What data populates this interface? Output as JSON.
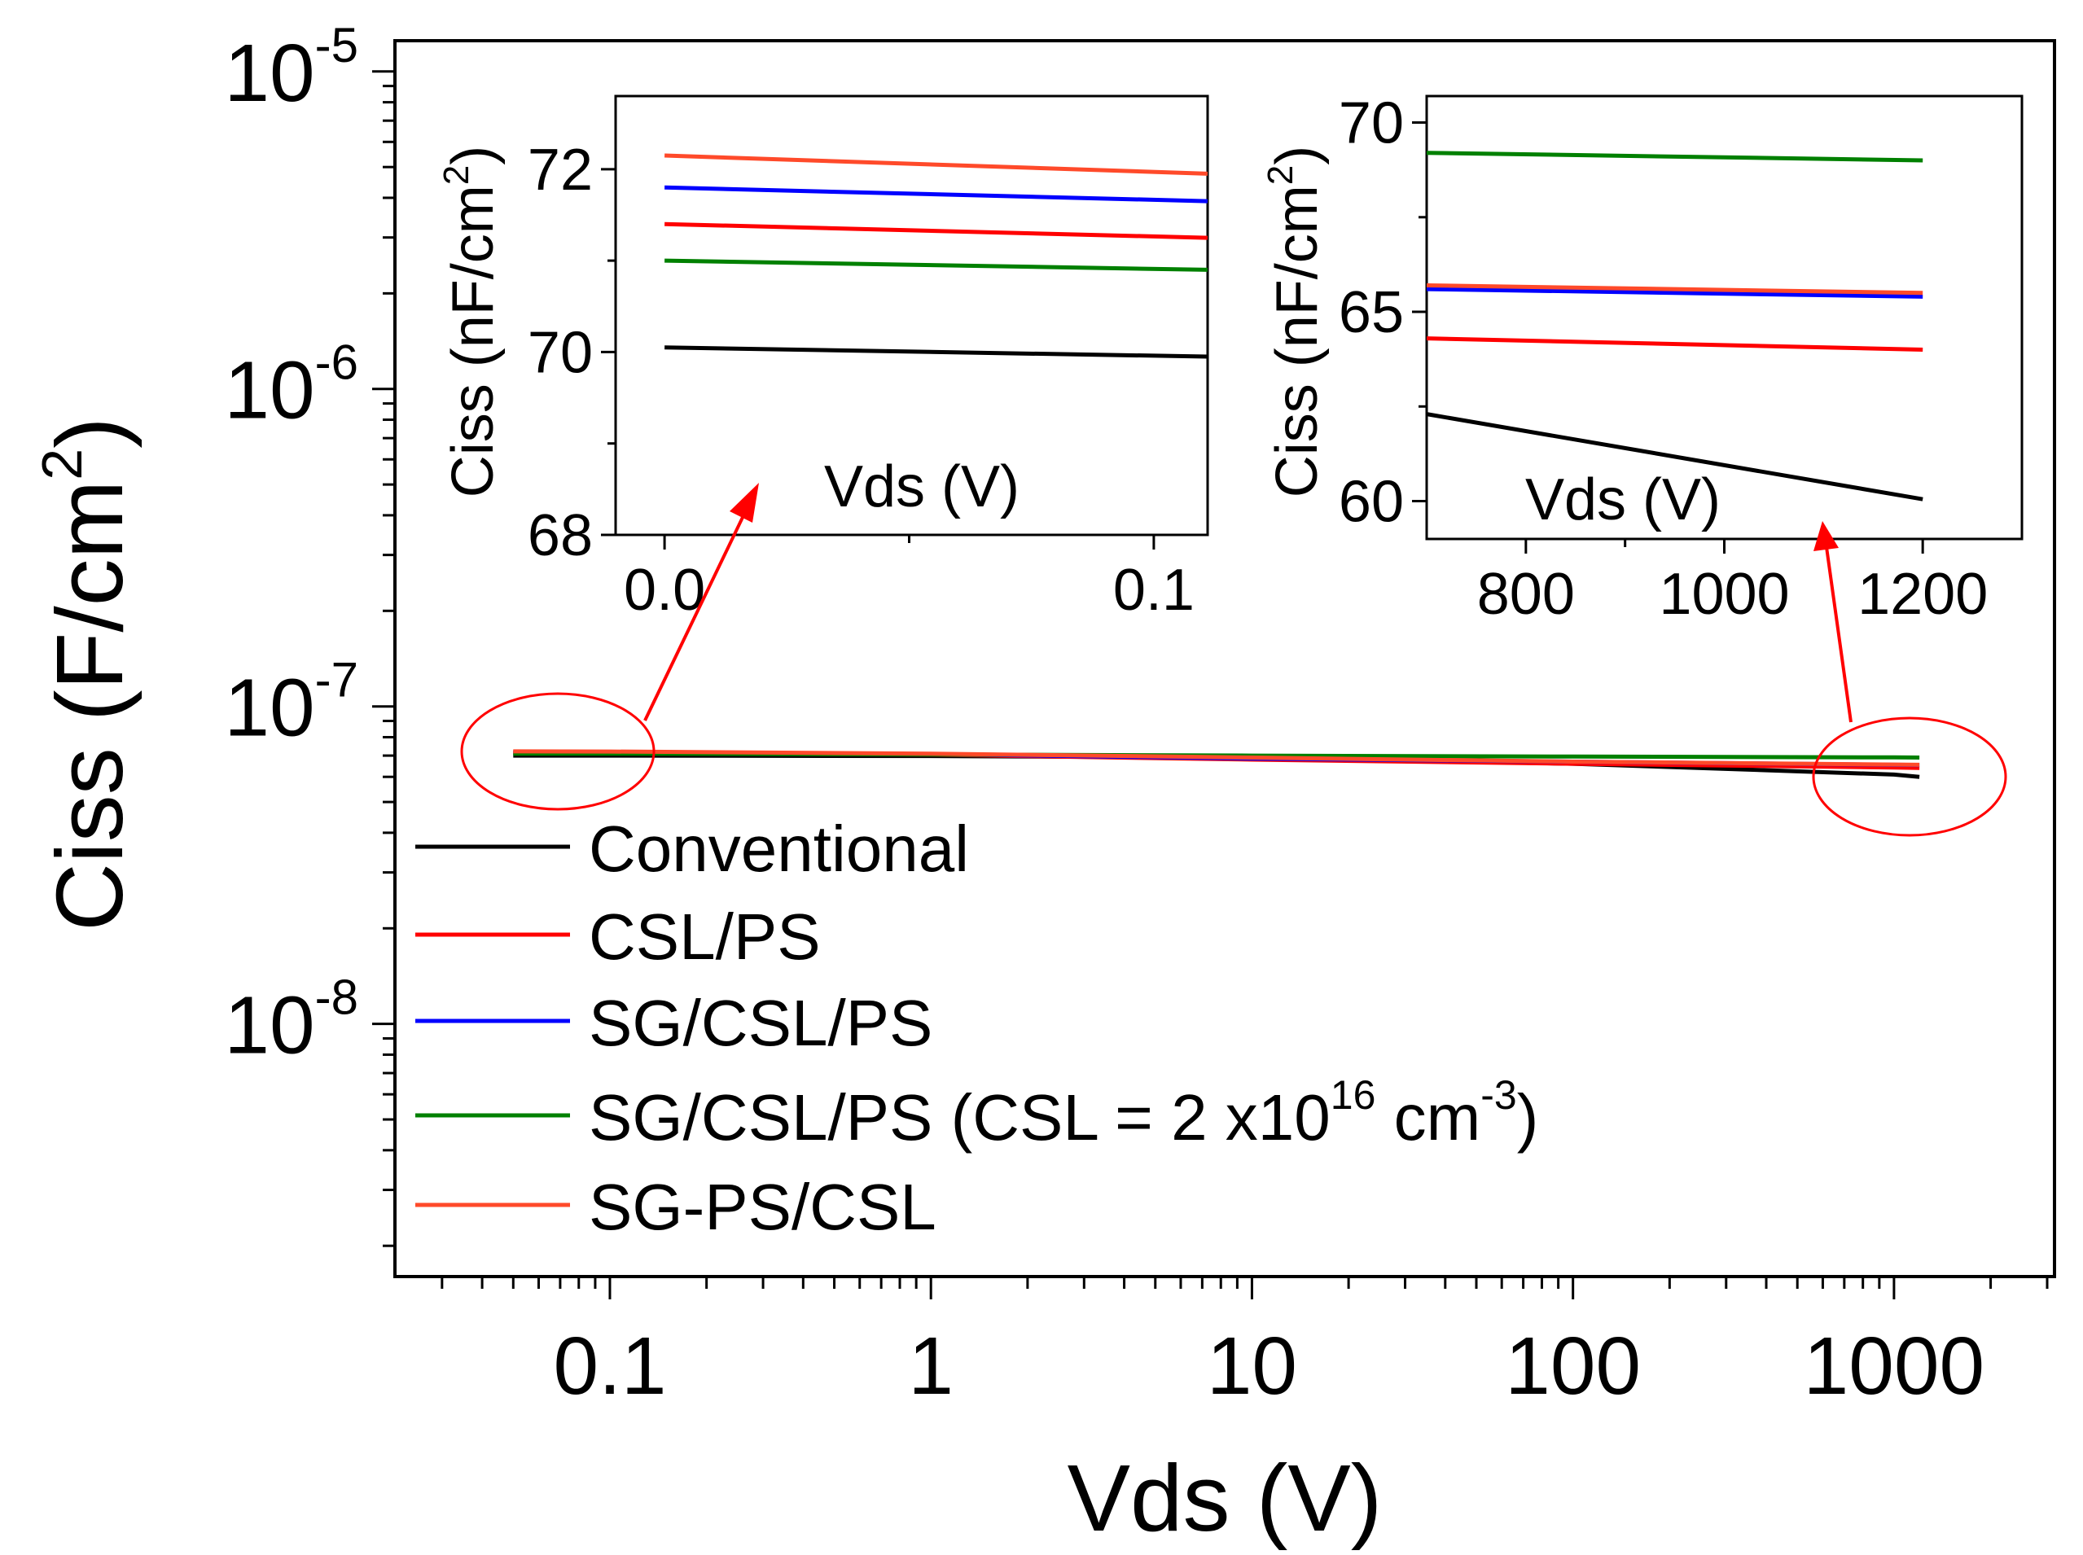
{
  "chart_data": [
    {
      "id": "main",
      "type": "line",
      "xscale": "log",
      "yscale": "log",
      "xlim": [
        0.0214,
        3162
      ],
      "ylim": [
        1.6e-09,
        1.25e-05
      ],
      "xlabel": "Vds (V)",
      "ylabel": "Ciss (F/cm²)",
      "ylabel_parts": {
        "main": "Ciss (F/cm",
        "sup": "2",
        "close": ")"
      },
      "x_ticks": [
        {
          "v": 0.1,
          "label": "0.1"
        },
        {
          "v": 1,
          "label": "1"
        },
        {
          "v": 10,
          "label": "10"
        },
        {
          "v": 100,
          "label": "100"
        },
        {
          "v": 1000,
          "label": "1000"
        }
      ],
      "y_ticks": [
        {
          "v": 1e-05,
          "base": "10",
          "exp": "-5"
        },
        {
          "v": 1e-06,
          "base": "10",
          "exp": "-6"
        },
        {
          "v": 1e-07,
          "base": "10",
          "exp": "-7"
        },
        {
          "v": 1e-08,
          "base": "10",
          "exp": "-8"
        }
      ],
      "series": [
        {
          "name": "Conventional",
          "color": "#000000",
          "x": [
            0.05,
            0.1,
            1,
            10,
            100,
            1000,
            1200
          ],
          "y": [
            7e-08,
            7e-08,
            6.98e-08,
            6.9e-08,
            6.6e-08,
            6.1e-08,
            6e-08
          ]
        },
        {
          "name": "CSL/PS",
          "color": "#ff0000",
          "x": [
            0.05,
            0.1,
            1,
            10,
            100,
            1000,
            1200
          ],
          "y": [
            7.14e-08,
            7.13e-08,
            7.05e-08,
            6.8e-08,
            6.6e-08,
            6.42e-08,
            6.4e-08
          ]
        },
        {
          "name": "SG/CSL/PS",
          "color": "#0000ff",
          "x": [
            0.05,
            0.1,
            1,
            10,
            100,
            1000,
            1200
          ],
          "y": [
            7.18e-08,
            7.17e-08,
            7.08e-08,
            6.85e-08,
            6.7e-08,
            6.55e-08,
            6.54e-08
          ]
        },
        {
          "name": "SG/CSL/PS (CSL = 2 x10¹⁶ cm⁻³)",
          "color": "#008000",
          "x": [
            0.05,
            0.1,
            1,
            10,
            100,
            1000,
            1200
          ],
          "y": [
            7.1e-08,
            7.1e-08,
            7.06e-08,
            7e-08,
            6.95e-08,
            6.91e-08,
            6.9e-08
          ]
        },
        {
          "name": "SG-PS/CSL",
          "color": "#ff4a2a",
          "x": [
            0.05,
            0.1,
            1,
            10,
            100,
            1000,
            1200
          ],
          "y": [
            7.22e-08,
            7.21e-08,
            7.1e-08,
            6.9e-08,
            6.7e-08,
            6.56e-08,
            6.55e-08
          ]
        }
      ],
      "legend": {
        "placement": "bottom-left",
        "entries": [
          {
            "label": "Conventional",
            "color": "#000000"
          },
          {
            "label": "CSL/PS",
            "color": "#ff0000"
          },
          {
            "label": "SG/CSL/PS",
            "color": "#0000ff"
          },
          {
            "label": "SG/CSL/PS (CSL = 2 x10",
            "sup1": "16",
            "mid": " cm",
            "sup2": "-3",
            "end": ")",
            "color": "#008000"
          },
          {
            "label": "SG-PS/CSL",
            "color": "#ff4a2a"
          }
        ]
      },
      "annotations": [
        {
          "type": "ellipse",
          "color": "#ff0000",
          "around": "low-Vds region (x≈0.05–0.1)"
        },
        {
          "type": "ellipse",
          "color": "#ff0000",
          "around": "high-Vds region (x≈600–1200)"
        },
        {
          "type": "arrow",
          "color": "#ff0000",
          "to": "left inset"
        },
        {
          "type": "arrow",
          "color": "#ff0000",
          "to": "right inset"
        }
      ]
    },
    {
      "id": "inset-left",
      "type": "line",
      "xlim": [
        -0.01,
        0.111
      ],
      "ylim": [
        68,
        72.8
      ],
      "xlabel": "Vds (V)",
      "ylabel_parts": {
        "main": "Ciss (nF/cm",
        "sup": "2",
        "close": ")"
      },
      "x_ticks": [
        {
          "v": 0.0,
          "label": "0.0"
        },
        {
          "v": 0.1,
          "label": "0.1"
        }
      ],
      "x_minor": [
        0.05
      ],
      "y_ticks": [
        {
          "v": 68,
          "label": "68"
        },
        {
          "v": 70,
          "label": "70"
        },
        {
          "v": 72,
          "label": "72"
        }
      ],
      "y_minor": [
        69,
        71
      ],
      "series": [
        {
          "name": "Conventional",
          "color": "#000000",
          "x": [
            0,
            0.111
          ],
          "y": [
            70.05,
            69.95
          ]
        },
        {
          "name": "CSL/PS",
          "color": "#ff0000",
          "x": [
            0,
            0.111
          ],
          "y": [
            71.4,
            71.25
          ]
        },
        {
          "name": "SG/CSL/PS",
          "color": "#0000ff",
          "x": [
            0,
            0.111
          ],
          "y": [
            71.8,
            71.65
          ]
        },
        {
          "name": "SG/CSL/PS (CSL = 2 x10¹⁶ cm⁻³)",
          "color": "#008000",
          "x": [
            0,
            0.111
          ],
          "y": [
            71.0,
            70.9
          ]
        },
        {
          "name": "SG-PS/CSL",
          "color": "#ff4a2a",
          "x": [
            0,
            0.111
          ],
          "y": [
            72.15,
            71.95
          ]
        }
      ]
    },
    {
      "id": "inset-right",
      "type": "line",
      "xlim": [
        700,
        1300
      ],
      "ylim": [
        59,
        70.7
      ],
      "xlabel": "Vds (V)",
      "ylabel_parts": {
        "main": "Ciss (nF/cm",
        "sup": "2",
        "close": ")"
      },
      "x_ticks": [
        {
          "v": 800,
          "label": "800"
        },
        {
          "v": 1000,
          "label": "1000"
        },
        {
          "v": 1200,
          "label": "1200"
        }
      ],
      "x_minor": [
        900,
        1100
      ],
      "y_ticks": [
        {
          "v": 60,
          "label": "60"
        },
        {
          "v": 65,
          "label": "65"
        },
        {
          "v": 70,
          "label": "70"
        }
      ],
      "y_minor": [
        62.5,
        67.5
      ],
      "series": [
        {
          "name": "Conventional",
          "color": "#000000",
          "x": [
            700,
            1200
          ],
          "y": [
            62.3,
            60.05
          ]
        },
        {
          "name": "CSL/PS",
          "color": "#ff0000",
          "x": [
            700,
            1200
          ],
          "y": [
            64.3,
            64.0
          ]
        },
        {
          "name": "SG/CSL/PS",
          "color": "#0000ff",
          "x": [
            700,
            1200
          ],
          "y": [
            65.6,
            65.4
          ]
        },
        {
          "name": "SG/CSL/PS (CSL = 2 x10¹⁶ cm⁻³)",
          "color": "#008000",
          "x": [
            700,
            1200
          ],
          "y": [
            69.2,
            69.0
          ]
        },
        {
          "name": "SG-PS/CSL",
          "color": "#ff4a2a",
          "x": [
            700,
            1200
          ],
          "y": [
            65.7,
            65.5
          ]
        }
      ]
    }
  ]
}
